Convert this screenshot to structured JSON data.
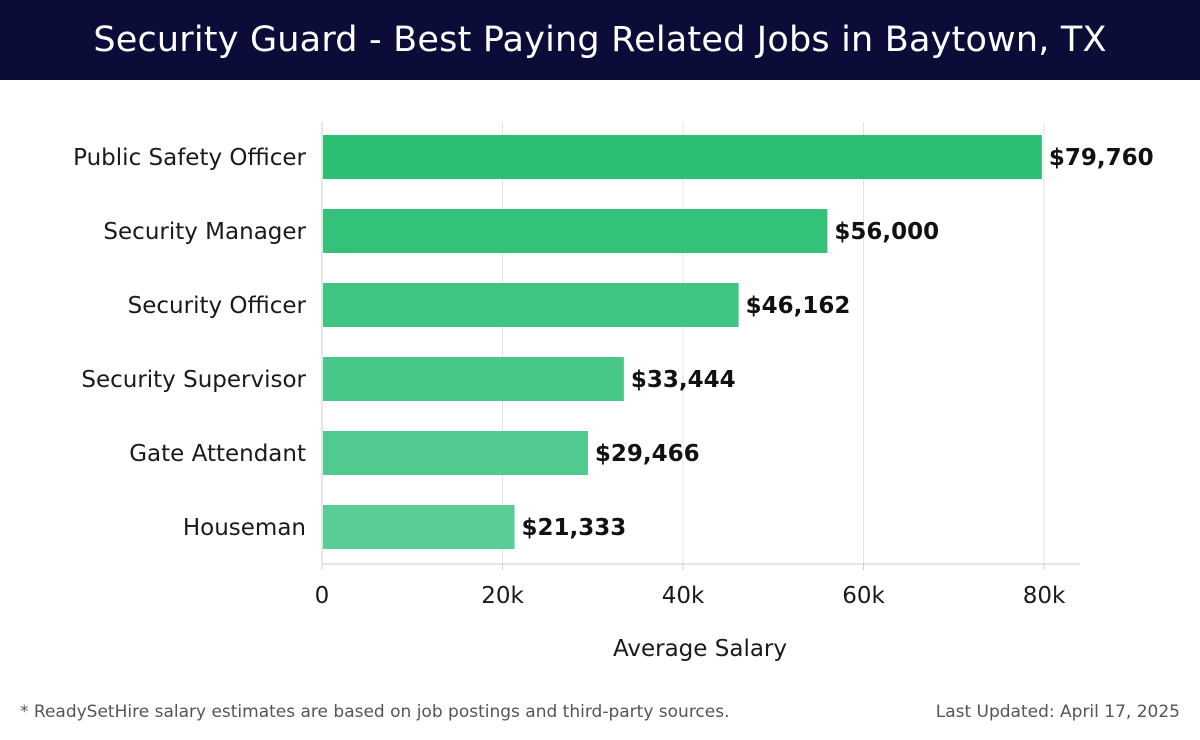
{
  "header": {
    "title": "Security Guard - Best Paying Related Jobs in Baytown, TX"
  },
  "chart_data": {
    "type": "bar",
    "orientation": "horizontal",
    "categories": [
      "Public Safety Officer",
      "Security Manager",
      "Security Officer",
      "Security Supervisor",
      "Gate Attendant",
      "Houseman"
    ],
    "values": [
      79760,
      56000,
      46162,
      33444,
      29466,
      21333
    ],
    "value_labels": [
      "$79,760",
      "$56,000",
      "$46,162",
      "$33,444",
      "$29,466",
      "$21,333"
    ],
    "xlabel": "Average Salary",
    "ylabel": "",
    "xlim": [
      0,
      84000
    ],
    "x_ticks": [
      0,
      20000,
      40000,
      60000,
      80000
    ],
    "x_tick_labels": [
      "0",
      "20k",
      "40k",
      "60k",
      "80k"
    ],
    "grid": true,
    "colors": {
      "bar_top": "#2bbf74",
      "bar_bottom": "#5acd96",
      "grid": "#e3e3e3",
      "axis": "#cccccc"
    }
  },
  "footer": {
    "note": "* ReadySetHire salary estimates are based on job postings and third-party sources.",
    "updated": "Last Updated: April 17, 2025"
  }
}
